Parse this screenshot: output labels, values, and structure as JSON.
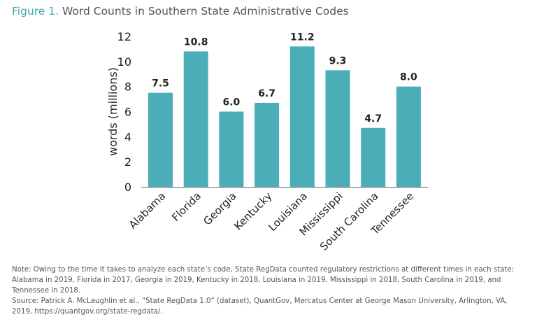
{
  "title": {
    "figure_label": "Figure 1.",
    "text": "Word Counts in Southern State Administrative Codes"
  },
  "chart_data": {
    "type": "bar",
    "categories": [
      "Alabama",
      "Florida",
      "Georgia",
      "Kentucky",
      "Louisiana",
      "Mississippi",
      "South Carolina",
      "Tennessee"
    ],
    "values": [
      7.5,
      10.8,
      6.0,
      6.7,
      11.2,
      9.3,
      4.7,
      8.0
    ],
    "data_labels": [
      "7.5",
      "10.8",
      "6.0",
      "6.7",
      "11.2",
      "9.3",
      "4.7",
      "8.0"
    ],
    "ylabel": "words (millions)",
    "xlabel": "",
    "ylim": [
      0,
      12
    ],
    "yticks": [
      "0",
      "2",
      "4",
      "6",
      "8",
      "10",
      "12"
    ],
    "grid": false,
    "bar_color": "#4aadb7"
  },
  "note": {
    "line1": "Note: Owing to the time it takes to analyze each state’s code, State RegData counted regulatory restrictions at different times in each state: Alabama in 2019, Florida in 2017, Georgia in 2019, Kentucky in 2018, Louisiana in 2019, Mississippi in 2018, South Carolina in 2019, and Tennessee in 2018.",
    "line2": "Source: Patrick A. McLaughlin et al., “State RegData 1.0” (dataset), QuantGov, Mercatus Center at George Mason University, Arlington, VA, 2019, https://quantgov.org/state-regdata/."
  }
}
